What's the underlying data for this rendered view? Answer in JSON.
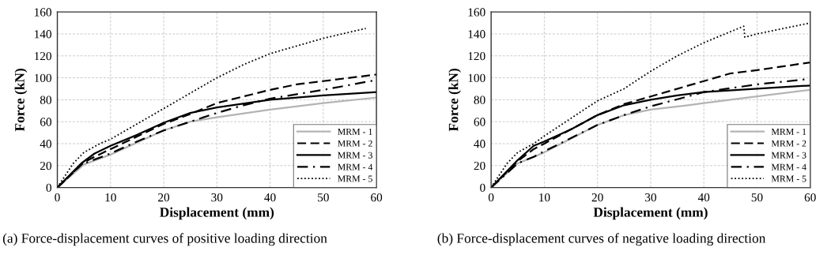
{
  "chart_data": [
    {
      "type": "line",
      "xlabel": "Displacement (mm)",
      "ylabel": "Force (kN)",
      "xlim": [
        0,
        60
      ],
      "ylim": [
        0,
        160
      ],
      "xticks": [
        0,
        10,
        20,
        30,
        40,
        50,
        60
      ],
      "yticks": [
        0,
        20,
        40,
        60,
        80,
        100,
        120,
        140,
        160
      ],
      "grid": true,
      "legend": "bottom right",
      "marker": "none",
      "annotations": [
        "(a) Force-displacement curves of positive loading direction"
      ],
      "series": [
        {
          "name": "MRM - 1",
          "color": "#b4b4b4",
          "line_style": "solid",
          "x": [
            0,
            5,
            10,
            20,
            25,
            30,
            40,
            50,
            60
          ],
          "values": [
            0,
            21,
            30,
            52,
            60,
            64,
            71,
            77,
            82
          ]
        },
        {
          "name": "MRM - 2",
          "color": "#000000",
          "line_style": "dashed",
          "x": [
            0,
            5,
            7,
            10,
            20,
            25,
            30,
            40,
            45,
            50,
            60
          ],
          "values": [
            0,
            23,
            28,
            35,
            58,
            67,
            77,
            89,
            94,
            97,
            103
          ]
        },
        {
          "name": "MRM - 3",
          "color": "#000000",
          "line_style": "solid",
          "x": [
            0,
            4.5,
            7,
            10,
            15,
            20,
            25,
            30,
            40,
            50,
            60
          ],
          "values": [
            0,
            22,
            31,
            38,
            48,
            59,
            68,
            73,
            80,
            84,
            87
          ]
        },
        {
          "name": "MRM - 4",
          "color": "#000000",
          "line_style": "dashdot",
          "x": [
            0,
            4.5,
            10,
            15,
            20,
            25,
            30,
            35,
            40,
            50,
            60
          ],
          "values": [
            0,
            21,
            31,
            42,
            52,
            60,
            68,
            75,
            81,
            89,
            98
          ]
        },
        {
          "name": "MRM - 5",
          "color": "#000000",
          "line_style": "dotted",
          "x": [
            0,
            3,
            5,
            8,
            10,
            20,
            25,
            30,
            35,
            40,
            45,
            50,
            58
          ],
          "values": [
            0,
            22,
            32,
            40,
            44,
            72,
            86,
            100,
            112,
            122,
            129,
            136,
            145
          ]
        }
      ]
    },
    {
      "type": "line",
      "xlabel": "Displacement (mm)",
      "ylabel": "Force (kN)",
      "xlim": [
        0,
        60
      ],
      "ylim": [
        0,
        160
      ],
      "xticks": [
        0,
        10,
        20,
        30,
        40,
        50,
        60
      ],
      "yticks": [
        0,
        20,
        40,
        60,
        80,
        100,
        120,
        140,
        160
      ],
      "grid": true,
      "legend": "bottom right",
      "marker": "none",
      "annotations": [
        "(b) Force-displacement curves of negative loading direction"
      ],
      "series": [
        {
          "name": "MRM - 1",
          "color": "#b4b4b4",
          "line_style": "solid",
          "x": [
            0,
            5,
            10,
            20,
            25,
            30,
            37,
            40,
            50,
            60
          ],
          "values": [
            0,
            22,
            32,
            57,
            66,
            71,
            75,
            77,
            83,
            89
          ]
        },
        {
          "name": "MRM - 2",
          "color": "#000000",
          "line_style": "dashed",
          "x": [
            0,
            5,
            8,
            10,
            20,
            25,
            30,
            40,
            45,
            50,
            60
          ],
          "values": [
            0,
            24,
            35,
            40,
            66,
            76,
            83,
            97,
            104,
            107,
            114
          ]
        },
        {
          "name": "MRM - 3",
          "color": "#000000",
          "line_style": "solid",
          "x": [
            0,
            5,
            8,
            10,
            15,
            20,
            25,
            30,
            35,
            40,
            50,
            60
          ],
          "values": [
            0,
            25,
            38,
            42,
            53,
            66,
            75,
            80,
            84,
            87,
            90,
            93
          ]
        },
        {
          "name": "MRM - 4",
          "color": "#000000",
          "line_style": "dashdot",
          "x": [
            0,
            5,
            8,
            10,
            15,
            20,
            25,
            30,
            37,
            40,
            50,
            60
          ],
          "values": [
            0,
            22,
            28,
            33,
            45,
            57,
            66,
            74,
            83,
            87,
            94,
            99
          ]
        },
        {
          "name": "MRM - 5",
          "color": "#000000",
          "line_style": "dotted",
          "x": [
            0,
            3,
            5,
            8,
            10,
            20,
            25,
            30,
            35,
            40,
            45,
            47.5,
            47.7,
            50,
            60
          ],
          "values": [
            0,
            22,
            32,
            40,
            47,
            79,
            90,
            106,
            120,
            132,
            142,
            147,
            137,
            140,
            150
          ]
        }
      ]
    }
  ]
}
